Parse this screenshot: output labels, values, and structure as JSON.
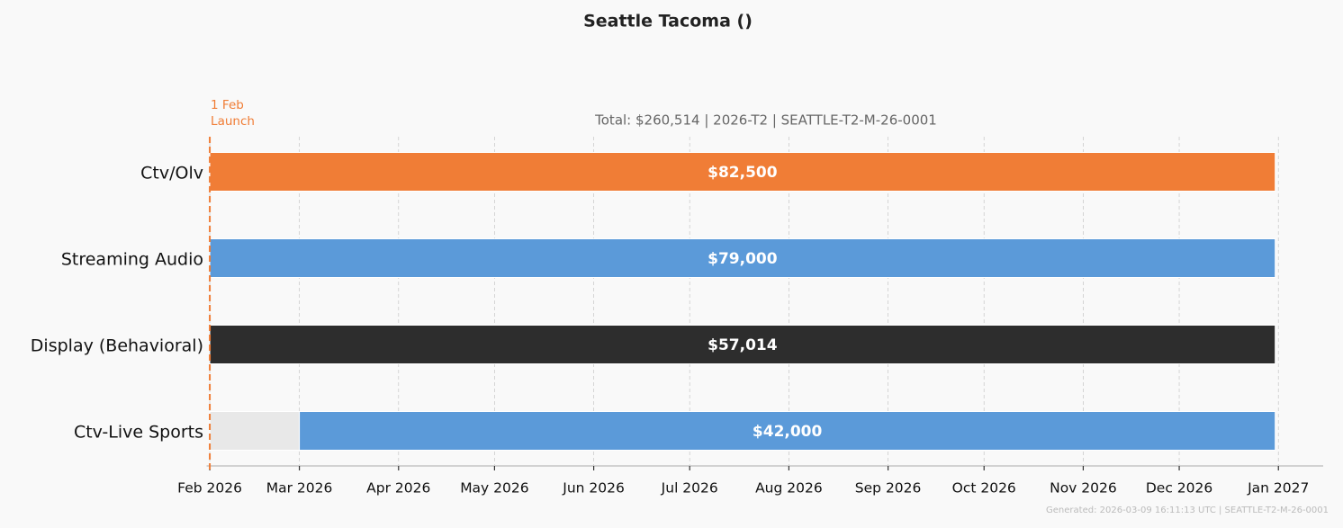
{
  "chart_data": {
    "type": "gantt",
    "title": "Seattle Tacoma ()",
    "subtitle": "Total: $260,514  |  2026-T2  |  SEATTLE-T2-M-26-0001",
    "footer": "Generated: 2026-03-09 16:11:13 UTC  |  SEATTLE-T2-M-26-0001",
    "marker": {
      "date": "2026-02-01",
      "label": [
        "1 Feb",
        "Launch"
      ],
      "color": "#f07d36"
    },
    "rows": [
      {
        "name": "Ctv/Olv",
        "segments": [
          {
            "start": "2026-02-01",
            "end": "2026-12-31",
            "color": "#f07d36",
            "value": 82500,
            "value_label": "$82,500"
          }
        ]
      },
      {
        "name": "Streaming Audio",
        "segments": [
          {
            "start": "2026-02-01",
            "end": "2026-12-31",
            "color": "#5b9ad9",
            "value": 79000,
            "value_label": "$79,000"
          }
        ]
      },
      {
        "name": "Display (Behavioral)",
        "segments": [
          {
            "start": "2026-02-01",
            "end": "2026-12-31",
            "color": "#2d2d2d",
            "value": 57014,
            "value_label": "$57,014"
          }
        ]
      },
      {
        "name": "Ctv-Live Sports",
        "segments": [
          {
            "start": "2026-02-01",
            "end": "2026-03-01",
            "color": "#e8e8e8"
          },
          {
            "start": "2026-03-01",
            "end": "2026-12-31",
            "color": "#5b9ad9",
            "value": 42000,
            "value_label": "$42,000"
          }
        ]
      }
    ],
    "xlim": [
      "2026-01-31",
      "2027-01-15"
    ],
    "xticks": [
      {
        "value": "2026-02-01",
        "label": "Feb 2026"
      },
      {
        "value": "2026-03-01",
        "label": "Mar 2026"
      },
      {
        "value": "2026-04-01",
        "label": "Apr 2026"
      },
      {
        "value": "2026-05-01",
        "label": "May 2026"
      },
      {
        "value": "2026-06-01",
        "label": "Jun 2026"
      },
      {
        "value": "2026-07-01",
        "label": "Jul 2026"
      },
      {
        "value": "2026-08-01",
        "label": "Aug 2026"
      },
      {
        "value": "2026-09-01",
        "label": "Sep 2026"
      },
      {
        "value": "2026-10-01",
        "label": "Oct 2026"
      },
      {
        "value": "2026-11-01",
        "label": "Nov 2026"
      },
      {
        "value": "2026-12-01",
        "label": "Dec 2026"
      },
      {
        "value": "2027-01-01",
        "label": "Jan 2027"
      }
    ],
    "grid": true
  }
}
